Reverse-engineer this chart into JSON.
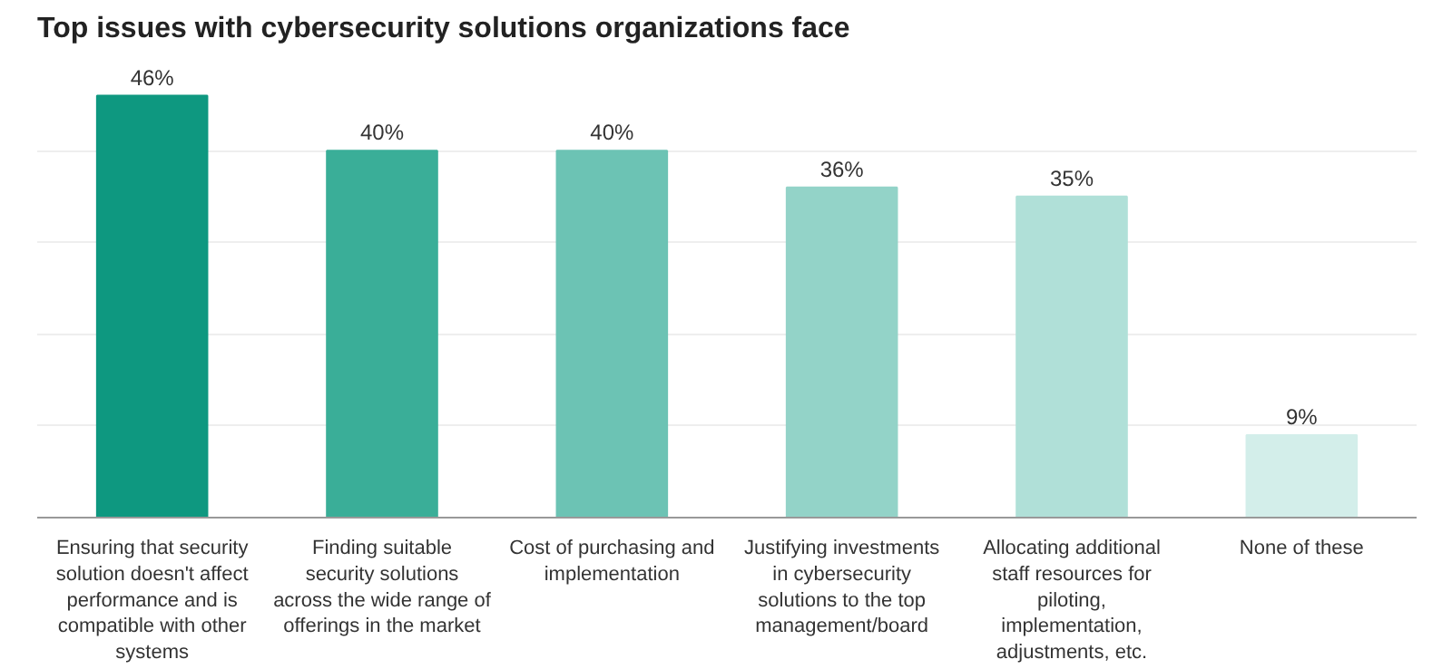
{
  "chart_data": {
    "type": "bar",
    "title": "Top issues with cybersecurity solutions organizations face",
    "categories": [
      "Ensuring that security solution doesn't affect performance and is compatible with other systems",
      "Finding suitable security solutions across the wide range of offerings in the market",
      "Cost of purchasing and implementation",
      "Justifying investments in cybersecurity solutions to the top management/board",
      "Allocating additional staff resources for piloting, implementation, adjustments, etc.",
      "None of these"
    ],
    "values": [
      46,
      40,
      40,
      36,
      35,
      9
    ],
    "colors": [
      "#0e9880",
      "#3aae98",
      "#6cc3b4",
      "#93d3c8",
      "#b0e0d8",
      "#d3eeea"
    ],
    "value_labels": [
      "46%",
      "40%",
      "40%",
      "36%",
      "35%",
      "9%"
    ],
    "yticks": [
      {
        "value": 10,
        "label": null
      },
      {
        "value": 20,
        "label": null
      },
      {
        "value": 30,
        "label": null
      },
      {
        "value": 40,
        "label": null
      }
    ],
    "grid": "y",
    "tick_labels": "x"
  }
}
